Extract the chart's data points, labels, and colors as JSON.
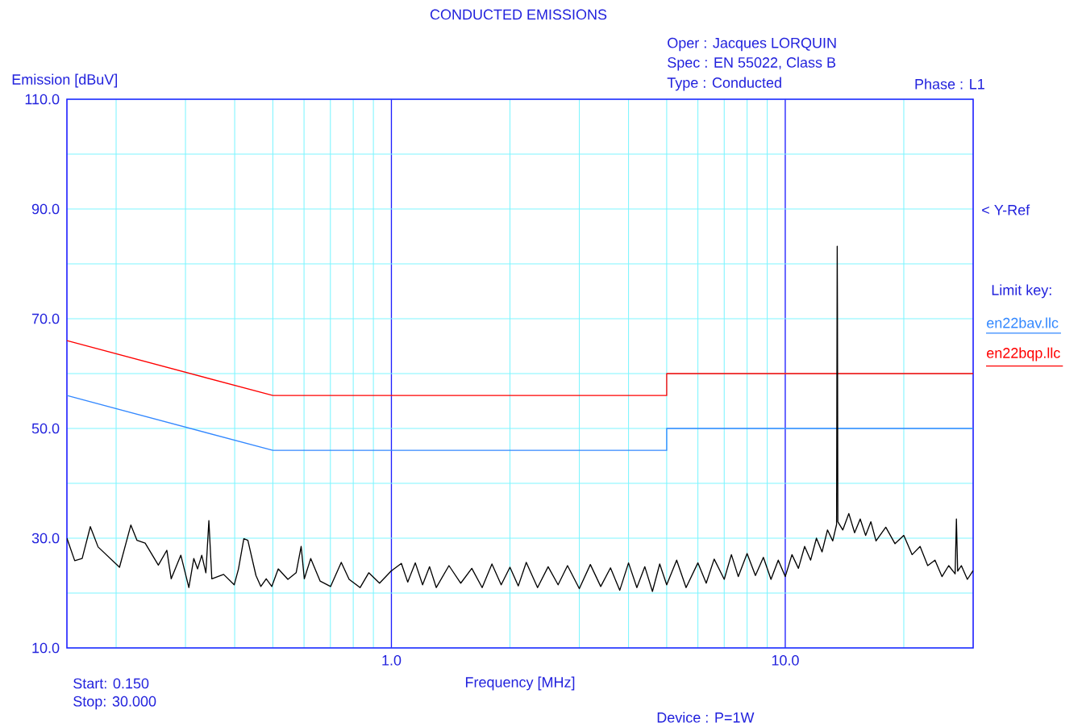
{
  "chart_data": {
    "type": "line",
    "title": "CONDUCTED EMISSIONS",
    "xlabel": "Frequency [MHz]",
    "ylabel": "Emission [dBuV]",
    "log": "x",
    "xlim": [
      0.15,
      30
    ],
    "ylim": [
      10,
      110
    ],
    "xticks": [
      {
        "value": 0.2,
        "label": null
      },
      {
        "value": 0.3,
        "label": null
      },
      {
        "value": 0.4,
        "label": null
      },
      {
        "value": 0.5,
        "label": null
      },
      {
        "value": 0.6,
        "label": null
      },
      {
        "value": 0.7,
        "label": null
      },
      {
        "value": 0.8,
        "label": null
      },
      {
        "value": 0.9,
        "label": null
      },
      {
        "value": 1,
        "label": "1.0"
      },
      {
        "value": 2,
        "label": null
      },
      {
        "value": 3,
        "label": null
      },
      {
        "value": 4,
        "label": null
      },
      {
        "value": 5,
        "label": null
      },
      {
        "value": 6,
        "label": null
      },
      {
        "value": 7,
        "label": null
      },
      {
        "value": 8,
        "label": null
      },
      {
        "value": 9,
        "label": null
      },
      {
        "value": 10,
        "label": "10.0"
      },
      {
        "value": 20,
        "label": null
      }
    ],
    "yticks": [
      {
        "value": 10,
        "label": "10.0"
      },
      {
        "value": 20,
        "label": null
      },
      {
        "value": 30,
        "label": "30.0"
      },
      {
        "value": 40,
        "label": null
      },
      {
        "value": 50,
        "label": "50.0"
      },
      {
        "value": 60,
        "label": null
      },
      {
        "value": 70,
        "label": "70.0"
      },
      {
        "value": 80,
        "label": null
      },
      {
        "value": 90,
        "label": "90.0"
      },
      {
        "value": 100,
        "label": null
      },
      {
        "value": 110,
        "label": "110.0"
      }
    ],
    "grid": true,
    "legend": "right",
    "legend_title": "Limit key:",
    "line_style": "solid",
    "marker": "none",
    "annotations": [
      "Oper : Jacques LORQUIN",
      "Spec : EN 55022, Class B",
      "Type : Conducted",
      "Phase : L1",
      "< Y-Ref",
      "Start: 0.150",
      "Stop: 30.000",
      "Device : P=1W"
    ],
    "series": [
      {
        "name": "en22bav.llc",
        "color": "#3388ff",
        "x": [
          0.15,
          0.5,
          5,
          5,
          30
        ],
        "values": [
          56,
          46,
          46,
          50,
          50
        ]
      },
      {
        "name": "en22bqp.llc",
        "color": "#ff0000",
        "x": [
          0.15,
          0.5,
          5,
          5,
          30
        ],
        "values": [
          66,
          56,
          56,
          60,
          60
        ]
      },
      {
        "color": "#000000",
        "x": [
          0.15,
          0.157,
          0.164,
          0.172,
          0.18,
          0.204,
          0.218,
          0.226,
          0.237,
          0.256,
          0.269,
          0.276,
          0.292,
          0.306,
          0.315,
          0.322,
          0.33,
          0.338,
          0.344,
          0.35,
          0.375,
          0.399,
          0.409,
          0.422,
          0.432,
          0.453,
          0.466,
          0.481,
          0.497,
          0.516,
          0.546,
          0.573,
          0.59,
          0.601,
          0.624,
          0.659,
          0.701,
          0.746,
          0.781,
          0.833,
          0.876,
          0.933,
          0.998,
          1.06,
          1.1,
          1.15,
          1.2,
          1.25,
          1.3,
          1.4,
          1.5,
          1.6,
          1.7,
          1.8,
          1.9,
          2.0,
          2.1,
          2.2,
          2.35,
          2.5,
          2.65,
          2.8,
          3.0,
          3.2,
          3.4,
          3.6,
          3.8,
          4.0,
          4.2,
          4.4,
          4.6,
          4.8,
          5.0,
          5.3,
          5.6,
          6.0,
          6.3,
          6.6,
          7.0,
          7.3,
          7.6,
          8.0,
          8.4,
          8.8,
          9.2,
          9.6,
          10.0,
          10.4,
          10.8,
          11.2,
          11.6,
          12.0,
          12.4,
          12.8,
          13.2,
          13.5,
          13.55,
          13.57,
          13.6,
          14,
          14.5,
          15,
          15.5,
          16,
          16.5,
          17,
          18,
          19,
          20,
          21,
          22,
          23,
          24,
          25,
          26,
          27,
          27.2,
          27.4,
          28,
          29,
          30
        ],
        "values": [
          30.0,
          25.9,
          26.3,
          32.1,
          28.4,
          24.7,
          32.4,
          29.6,
          29.1,
          25.1,
          27.8,
          22.6,
          26.9,
          21.0,
          26.3,
          24.4,
          26.9,
          23.7,
          33.2,
          22.6,
          23.4,
          21.5,
          24.4,
          29.9,
          29.6,
          23.2,
          21.2,
          22.6,
          21.2,
          24.4,
          22.5,
          23.7,
          28.5,
          22.6,
          26.3,
          22.2,
          21.2,
          25.6,
          22.5,
          21.0,
          23.7,
          21.8,
          24.0,
          25.4,
          22,
          25.5,
          21.5,
          24.8,
          21,
          25,
          21.8,
          24.5,
          21,
          25.3,
          21.5,
          24.7,
          21.3,
          25.6,
          21,
          24.8,
          21.5,
          25,
          20.8,
          25.2,
          21.2,
          24.6,
          20.5,
          25.5,
          21,
          24.8,
          20.3,
          25.3,
          21.5,
          26,
          21,
          25.5,
          21.8,
          26.2,
          22.5,
          27,
          23,
          27.2,
          23.2,
          26.5,
          22.5,
          26,
          23,
          27,
          24.5,
          28.5,
          26,
          30,
          27.5,
          31.5,
          29.5,
          32.5,
          83.2,
          71,
          33,
          31.5,
          34.5,
          31,
          33.5,
          30.5,
          33,
          29.5,
          32,
          29,
          30.5,
          27,
          28.5,
          25,
          26,
          23,
          25,
          23.5,
          33.5,
          24,
          25,
          22.5,
          24.1
        ]
      }
    ]
  }
}
